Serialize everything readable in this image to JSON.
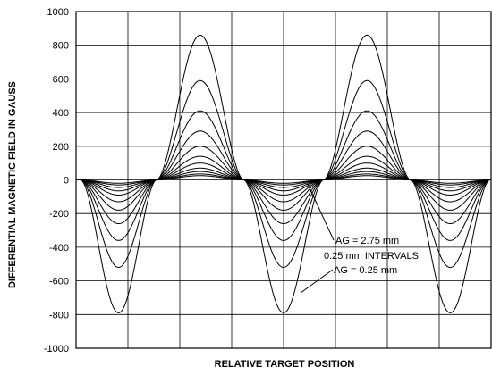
{
  "chart_data": {
    "type": "line",
    "title": "",
    "xlabel": "RELATIVE TARGET POSITION",
    "ylabel": "DIFFERENTIAL MAGNETIC FIELD IN GAUSS",
    "ylim": [
      -1000,
      1000
    ],
    "yticks": [
      1000,
      800,
      600,
      400,
      200,
      0,
      -200,
      -400,
      -600,
      -800,
      -1000
    ],
    "xticks_labeled": false,
    "vertical_gridlines": 7,
    "grid": true,
    "waveform": "periodic, ~2.5 cycles across plot; troughs narrower-wide, peaks at ~30% and ~70% of width",
    "air_gaps_mm": [
      0.25,
      0.5,
      0.75,
      1.0,
      1.25,
      1.5,
      1.75,
      2.0,
      2.25,
      2.5,
      2.75
    ],
    "peak_values_gauss": [
      860,
      590,
      410,
      290,
      200,
      140,
      100,
      70,
      50,
      35,
      25
    ],
    "trough_values_gauss": [
      -790,
      -520,
      -360,
      -260,
      -180,
      -130,
      -90,
      -65,
      -45,
      -30,
      -20
    ],
    "annotations": [
      "AG = 2.75 mm",
      "0.25 mm INTERVALS",
      "AG = 0.25 mm"
    ]
  }
}
